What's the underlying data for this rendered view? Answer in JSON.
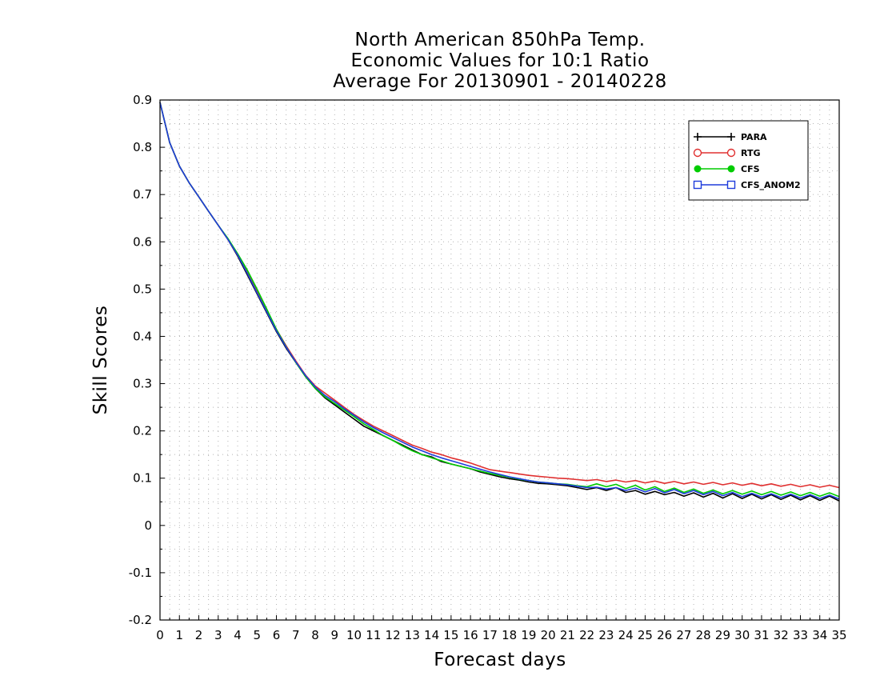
{
  "chart_data": {
    "type": "line",
    "title": [
      "North American 850hPa Temp.",
      "Economic Values for 10:1 Ratio",
      "Average For 20130901 - 20140228"
    ],
    "xlabel": "Forecast days",
    "ylabel": "Skill Scores",
    "xlim": [
      0,
      35
    ],
    "ylim": [
      -0.2,
      0.9
    ],
    "xticks": [
      0,
      1,
      2,
      3,
      4,
      5,
      6,
      7,
      8,
      9,
      10,
      11,
      12,
      13,
      14,
      15,
      16,
      17,
      18,
      19,
      20,
      21,
      22,
      23,
      24,
      25,
      26,
      27,
      28,
      29,
      30,
      31,
      32,
      33,
      34,
      35
    ],
    "yticks": [
      -0.2,
      -0.1,
      0,
      0.1,
      0.2,
      0.3,
      0.4,
      0.5,
      0.6,
      0.7,
      0.8,
      0.9
    ],
    "ytick_labels": [
      "-0.2",
      "-0.1",
      "0",
      "0.1",
      "0.2",
      "0.3",
      "0.4",
      "0.5",
      "0.6",
      "0.7",
      "0.8",
      "0.9"
    ],
    "grid": true,
    "legend_position": "top-right",
    "x": [
      0,
      0.5,
      1,
      1.5,
      2,
      2.5,
      3,
      3.5,
      4,
      4.5,
      5,
      5.5,
      6,
      6.5,
      7,
      7.5,
      8,
      8.5,
      9,
      9.5,
      10,
      10.5,
      11,
      11.5,
      12,
      12.5,
      13,
      13.5,
      14,
      14.5,
      15,
      15.5,
      16,
      16.5,
      17,
      17.5,
      18,
      18.5,
      19,
      19.5,
      20,
      20.5,
      21,
      21.5,
      22,
      22.5,
      23,
      23.5,
      24,
      24.5,
      25,
      25.5,
      26,
      26.5,
      27,
      27.5,
      28,
      28.5,
      29,
      29.5,
      30,
      30.5,
      31,
      31.5,
      32,
      32.5,
      33,
      33.5,
      34,
      34.5,
      35
    ],
    "series": [
      {
        "name": "PARA",
        "color": "#000000",
        "marker": "plus",
        "values": [
          0.895,
          0.81,
          0.76,
          0.725,
          0.695,
          0.665,
          0.635,
          0.605,
          0.57,
          0.53,
          0.49,
          0.45,
          0.41,
          0.375,
          0.345,
          0.315,
          0.29,
          0.27,
          0.255,
          0.24,
          0.225,
          0.21,
          0.2,
          0.19,
          0.18,
          0.17,
          0.16,
          0.15,
          0.145,
          0.135,
          0.13,
          0.125,
          0.12,
          0.113,
          0.108,
          0.103,
          0.099,
          0.096,
          0.092,
          0.089,
          0.088,
          0.086,
          0.084,
          0.08,
          0.076,
          0.08,
          0.074,
          0.08,
          0.07,
          0.074,
          0.066,
          0.072,
          0.065,
          0.07,
          0.062,
          0.069,
          0.06,
          0.068,
          0.058,
          0.067,
          0.057,
          0.066,
          0.056,
          0.065,
          0.055,
          0.064,
          0.054,
          0.063,
          0.053,
          0.062,
          0.052
        ]
      },
      {
        "name": "RTG",
        "color": "#e03030",
        "marker": "circle-open",
        "values": [
          0.895,
          0.81,
          0.76,
          0.725,
          0.695,
          0.665,
          0.635,
          0.605,
          0.572,
          0.535,
          0.495,
          0.455,
          0.415,
          0.38,
          0.348,
          0.318,
          0.295,
          0.28,
          0.265,
          0.25,
          0.235,
          0.222,
          0.21,
          0.2,
          0.19,
          0.18,
          0.17,
          0.163,
          0.155,
          0.15,
          0.143,
          0.138,
          0.132,
          0.125,
          0.118,
          0.115,
          0.112,
          0.109,
          0.106,
          0.104,
          0.102,
          0.1,
          0.099,
          0.097,
          0.095,
          0.097,
          0.093,
          0.096,
          0.092,
          0.095,
          0.09,
          0.094,
          0.089,
          0.093,
          0.088,
          0.092,
          0.087,
          0.091,
          0.086,
          0.09,
          0.085,
          0.089,
          0.084,
          0.088,
          0.083,
          0.087,
          0.082,
          0.086,
          0.081,
          0.085,
          0.08
        ]
      },
      {
        "name": "CFS",
        "color": "#00cc00",
        "marker": "circle-filled",
        "values": [
          0.895,
          0.81,
          0.76,
          0.725,
          0.695,
          0.665,
          0.635,
          0.607,
          0.575,
          0.54,
          0.5,
          0.458,
          0.415,
          0.378,
          0.345,
          0.315,
          0.29,
          0.272,
          0.258,
          0.244,
          0.23,
          0.215,
          0.203,
          0.19,
          0.18,
          0.168,
          0.158,
          0.15,
          0.143,
          0.137,
          0.13,
          0.125,
          0.12,
          0.115,
          0.11,
          0.106,
          0.102,
          0.098,
          0.095,
          0.092,
          0.09,
          0.088,
          0.087,
          0.084,
          0.082,
          0.088,
          0.082,
          0.087,
          0.078,
          0.085,
          0.075,
          0.082,
          0.072,
          0.079,
          0.07,
          0.077,
          0.068,
          0.075,
          0.067,
          0.074,
          0.066,
          0.073,
          0.065,
          0.072,
          0.064,
          0.071,
          0.063,
          0.07,
          0.062,
          0.069,
          0.061
        ]
      },
      {
        "name": "CFS_ANOM2",
        "color": "#1e3cdc",
        "marker": "square-open",
        "values": [
          0.895,
          0.81,
          0.76,
          0.725,
          0.695,
          0.665,
          0.635,
          0.605,
          0.572,
          0.533,
          0.492,
          0.452,
          0.412,
          0.377,
          0.346,
          0.317,
          0.293,
          0.275,
          0.262,
          0.247,
          0.233,
          0.219,
          0.207,
          0.196,
          0.186,
          0.176,
          0.166,
          0.158,
          0.15,
          0.143,
          0.137,
          0.131,
          0.125,
          0.119,
          0.113,
          0.108,
          0.103,
          0.099,
          0.095,
          0.092,
          0.09,
          0.088,
          0.086,
          0.083,
          0.08,
          0.081,
          0.077,
          0.08,
          0.074,
          0.079,
          0.071,
          0.078,
          0.069,
          0.076,
          0.067,
          0.074,
          0.065,
          0.072,
          0.063,
          0.07,
          0.061,
          0.068,
          0.06,
          0.067,
          0.059,
          0.066,
          0.058,
          0.065,
          0.057,
          0.064,
          0.056
        ]
      }
    ]
  }
}
